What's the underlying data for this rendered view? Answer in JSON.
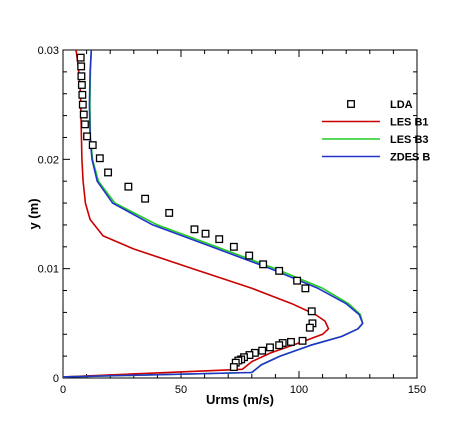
{
  "chart_data": {
    "type": "line",
    "xlabel": "Urms (m/s)",
    "ylabel": "y (m)",
    "xlim": [
      0,
      150
    ],
    "ylim": [
      0,
      0.03
    ],
    "xticks": [
      0,
      50,
      100,
      150
    ],
    "xtick_labels": [
      "0",
      "50",
      "100",
      "150"
    ],
    "yticks": [
      0,
      0.01,
      0.02,
      0.03
    ],
    "ytick_labels": [
      "0",
      "0.01",
      "0.02",
      "0.03"
    ],
    "grid": false,
    "legend_position": "right",
    "series": [
      {
        "name": "LDA",
        "kind": "markers",
        "marker": "square",
        "color": "#000000",
        "x": [
          7.5,
          7.7,
          7.8,
          8.0,
          8.2,
          8.4,
          8.8,
          9.3,
          10.2,
          12.6,
          15.6,
          19.1,
          27.7,
          34.8,
          45.0,
          55.7,
          60.4,
          66.2,
          72.4,
          78.9,
          84.8,
          91.6,
          99.2,
          102.7,
          105.4,
          105.7,
          104.6,
          101.5,
          96.6,
          93.1,
          91.6,
          87.7,
          84.4,
          81.3,
          79.0,
          76.7,
          75.5,
          74.3,
          73.2,
          72.4
        ],
        "y": [
          0.0293,
          0.0285,
          0.0276,
          0.0268,
          0.0259,
          0.025,
          0.0241,
          0.0232,
          0.0221,
          0.0213,
          0.0201,
          0.0188,
          0.0175,
          0.0164,
          0.0151,
          0.0136,
          0.0132,
          0.0127,
          0.012,
          0.0112,
          0.0104,
          0.0098,
          0.0089,
          0.0082,
          0.0061,
          0.005,
          0.0046,
          0.0034,
          0.0033,
          0.0032,
          0.003,
          0.0028,
          0.0025,
          0.0023,
          0.0021,
          0.0019,
          0.0017,
          0.0016,
          0.0014,
          0.001
        ]
      },
      {
        "name": "LES B1",
        "kind": "line",
        "color": "#cc0000",
        "x": [
          5.5,
          6.5,
          7.4,
          7.7,
          8.0,
          8.5,
          9.5,
          11.5,
          17.0,
          30.0,
          55.0,
          80.0,
          97.0,
          107.0,
          111.0,
          112.5,
          110.0,
          100.0,
          88.0,
          80.0,
          76.0,
          0.0
        ],
        "y": [
          0.03,
          0.0285,
          0.026,
          0.023,
          0.02,
          0.018,
          0.016,
          0.0145,
          0.013,
          0.0118,
          0.01,
          0.0082,
          0.0068,
          0.0058,
          0.0052,
          0.0045,
          0.004,
          0.0032,
          0.0023,
          0.0015,
          0.0008,
          0.0001
        ]
      },
      {
        "name": "LES B3",
        "kind": "line",
        "color": "#22cc22",
        "x": [
          12.0,
          11.6,
          11.4,
          11.6,
          12.5,
          15.0,
          22.0,
          40.0,
          65.0,
          90.0,
          110.0,
          121.0,
          126.0,
          127.0,
          125.0,
          118.0,
          105.0,
          92.0,
          84.0,
          80.0,
          0.0
        ],
        "y": [
          0.03,
          0.028,
          0.025,
          0.022,
          0.02,
          0.018,
          0.016,
          0.014,
          0.012,
          0.01,
          0.0082,
          0.0068,
          0.0058,
          0.005,
          0.0045,
          0.0038,
          0.003,
          0.002,
          0.0012,
          0.0005,
          0.0001
        ]
      },
      {
        "name": "ZDES B",
        "kind": "line",
        "color": "#2233cc",
        "x": [
          12.0,
          11.5,
          11.2,
          11.5,
          12.3,
          14.5,
          21.0,
          38.0,
          63.0,
          88.0,
          108.0,
          120.0,
          125.5,
          127.0,
          125.0,
          118.0,
          105.0,
          92.0,
          84.0,
          80.0,
          0.0
        ],
        "y": [
          0.03,
          0.028,
          0.025,
          0.022,
          0.02,
          0.018,
          0.016,
          0.014,
          0.012,
          0.01,
          0.0082,
          0.0068,
          0.0058,
          0.005,
          0.0045,
          0.0038,
          0.003,
          0.002,
          0.0012,
          0.0005,
          0.0001
        ]
      }
    ]
  }
}
